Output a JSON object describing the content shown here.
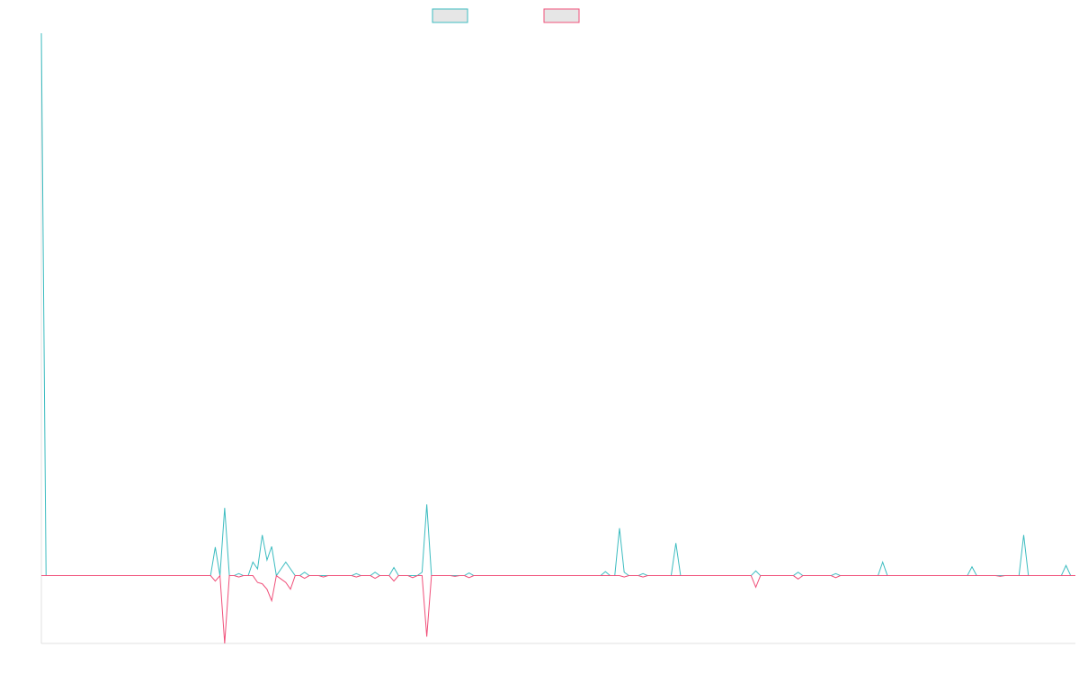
{
  "chart_data": {
    "type": "line",
    "ylim": [
      -10,
      80
    ],
    "series": [
      {
        "color": "#3cbcc0",
        "values": [
          80,
          0,
          0,
          0,
          0,
          0,
          0,
          0,
          0,
          0,
          0,
          0,
          0,
          0,
          0,
          0,
          0,
          0,
          0,
          0,
          0,
          0,
          0,
          0,
          0,
          0,
          0,
          0,
          0,
          0,
          0,
          0,
          0,
          0,
          0,
          0,
          0,
          4.2,
          0,
          10,
          0,
          0,
          0.3,
          0,
          0,
          2,
          1,
          6,
          2.3,
          4.3,
          0,
          1,
          2,
          1,
          0,
          0,
          0.5,
          0,
          0,
          0,
          0,
          0,
          0,
          0,
          0,
          0,
          0,
          0.3,
          0,
          0,
          0,
          0.5,
          0,
          0,
          0,
          1.2,
          0,
          0,
          0,
          0,
          0,
          0.5,
          10.5,
          0,
          0,
          0,
          0,
          0,
          0,
          0,
          0,
          0.4,
          0,
          0,
          0,
          0,
          0,
          0,
          0,
          0,
          0,
          0,
          0,
          0,
          0,
          0,
          0,
          0,
          0,
          0,
          0,
          0,
          0,
          0,
          0,
          0,
          0,
          0,
          0,
          0,
          0.6,
          0,
          0,
          7,
          0.5,
          0,
          0,
          0,
          0.3,
          0,
          0,
          0,
          0,
          0,
          0,
          4.8,
          0,
          0,
          0,
          0,
          0,
          0,
          0,
          0,
          0,
          0,
          0,
          0,
          0,
          0,
          0,
          0,
          0.7,
          0,
          0,
          0,
          0,
          0,
          0,
          0,
          0,
          0.5,
          0,
          0,
          0,
          0,
          0,
          0,
          0,
          0.3,
          0,
          0,
          0,
          0,
          0,
          0,
          0,
          0,
          0,
          2,
          0,
          0,
          0,
          0,
          0,
          0,
          0,
          0,
          0,
          0,
          0,
          0,
          0,
          0,
          0,
          0,
          0,
          0,
          1.3,
          0,
          0,
          0,
          0,
          0,
          0,
          0,
          0,
          0,
          0,
          6,
          0,
          0,
          0,
          0,
          0,
          0,
          0,
          0,
          1.5,
          0,
          0
        ]
      },
      {
        "color": "#f0507a",
        "values": [
          0,
          0,
          0,
          0,
          0,
          0,
          0,
          0,
          0,
          0,
          0,
          0,
          0,
          0,
          0,
          0,
          0,
          0,
          0,
          0,
          0,
          0,
          0,
          0,
          0,
          0,
          0,
          0,
          0,
          0,
          0,
          0,
          0,
          0,
          0,
          0,
          0,
          -0.8,
          0,
          -10,
          0,
          0,
          -0.2,
          0,
          0,
          0,
          -1,
          -1.2,
          -2,
          -3.7,
          0,
          -0.5,
          -1,
          -2,
          0,
          0,
          -0.4,
          0,
          0,
          0,
          -0.2,
          0,
          0,
          0,
          0,
          0,
          0,
          -0.2,
          0,
          0,
          0,
          -0.4,
          0,
          0,
          0,
          -0.8,
          0,
          0,
          0,
          -0.3,
          0,
          0,
          -9,
          0,
          0,
          0,
          0,
          0,
          -0.1,
          0,
          0,
          -0.3,
          0,
          0,
          0,
          0,
          0,
          0,
          0,
          0,
          0,
          0,
          0,
          0,
          0,
          0,
          0,
          0,
          0,
          0,
          0,
          0,
          0,
          0,
          0,
          0,
          0,
          0,
          0,
          0,
          0,
          0,
          0,
          0,
          -0.2,
          0,
          0,
          0,
          -0.2,
          0,
          0,
          0,
          0,
          0,
          0,
          0,
          0,
          0,
          0,
          0,
          0,
          0,
          0,
          0,
          0,
          0,
          0,
          0,
          0,
          0,
          0,
          0,
          -1.7,
          0,
          0,
          0,
          0,
          0,
          0,
          0,
          0,
          -0.5,
          0,
          0,
          0,
          0,
          0,
          0,
          0,
          -0.3,
          0,
          0,
          0,
          0,
          0,
          0,
          0,
          0,
          0,
          0,
          0,
          0,
          0,
          0,
          0,
          0,
          0,
          0,
          0,
          0,
          0,
          0,
          0,
          0,
          0,
          0,
          0,
          0,
          0,
          0,
          0,
          0,
          0,
          0,
          -0.1,
          0,
          0,
          0,
          0,
          0,
          0,
          0,
          0,
          0,
          0,
          0,
          0,
          0,
          0,
          0,
          0
        ]
      }
    ]
  }
}
